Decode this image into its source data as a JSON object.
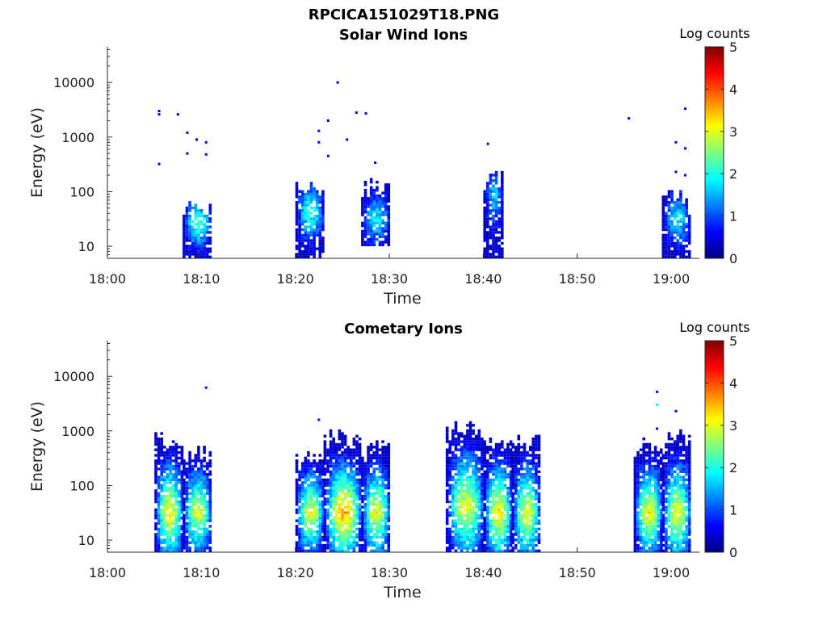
{
  "figure": {
    "title": "RPCICA151029T18.PNG"
  },
  "colors": {
    "jet": [
      "#00007f",
      "#0000ff",
      "#007fff",
      "#00ffff",
      "#7fff7f",
      "#ffff00",
      "#ff7f00",
      "#ff0000",
      "#7f0000"
    ]
  },
  "chart_data": [
    {
      "type": "heatmap",
      "title": "Solar Wind Ions",
      "xlabel": "Time",
      "ylabel": "Energy (eV)",
      "x_axis": {
        "type": "time",
        "range": [
          "18:00",
          "19:03"
        ],
        "ticks": [
          "18:00",
          "18:10",
          "18:20",
          "18:30",
          "18:40",
          "18:50",
          "19:00"
        ]
      },
      "y_axis": {
        "scale": "log",
        "range": [
          6,
          45000
        ],
        "ticks": [
          10,
          100,
          1000,
          10000
        ],
        "tick_labels": [
          "10",
          "100",
          "1000",
          "10000"
        ]
      },
      "colorbar": {
        "label": "Log counts",
        "range": [
          0,
          5
        ],
        "ticks": [
          0,
          1,
          2,
          3,
          4,
          5
        ],
        "tick_labels": [
          "0",
          "1",
          "2",
          "3",
          "4",
          "5"
        ],
        "colormap": "jet"
      },
      "bursts": [
        {
          "start": "18:08",
          "end": "18:10",
          "emin": 6,
          "emax": 90,
          "peak_e": 25,
          "peak_level": 2.3
        },
        {
          "start": "18:20",
          "end": "18:22",
          "emin": 6,
          "emax": 150,
          "peak_e": 40,
          "peak_level": 2.2
        },
        {
          "start": "18:27",
          "end": "18:29",
          "emin": 10,
          "emax": 180,
          "peak_e": 30,
          "peak_level": 1.9
        },
        {
          "start": "18:40",
          "end": "18:41",
          "emin": 6,
          "emax": 280,
          "peak_e": 80,
          "peak_level": 1.6
        },
        {
          "start": "18:59",
          "end": "19:01",
          "emin": 6,
          "emax": 110,
          "peak_e": 30,
          "peak_level": 1.9
        }
      ],
      "isolated_counts": [
        {
          "time": "18:05",
          "energy": 2600,
          "level": 0.5
        },
        {
          "time": "18:05",
          "energy": 320,
          "level": 0.5
        },
        {
          "time": "18:05",
          "energy": 3000,
          "level": 0.5
        },
        {
          "time": "18:07",
          "energy": 2600,
          "level": 0.5
        },
        {
          "time": "18:08",
          "energy": 1200,
          "level": 0.5
        },
        {
          "time": "18:08",
          "energy": 500,
          "level": 0.5
        },
        {
          "time": "18:09",
          "energy": 900,
          "level": 0.5
        },
        {
          "time": "18:10",
          "energy": 800,
          "level": 0.5
        },
        {
          "time": "18:10",
          "energy": 480,
          "level": 0.5
        },
        {
          "time": "18:22",
          "energy": 1300,
          "level": 0.5
        },
        {
          "time": "18:22",
          "energy": 800,
          "level": 0.5
        },
        {
          "time": "18:23",
          "energy": 450,
          "level": 0.5
        },
        {
          "time": "18:23",
          "energy": 2000,
          "level": 0.5
        },
        {
          "time": "18:24",
          "energy": 10000,
          "level": 0.5
        },
        {
          "time": "18:25",
          "energy": 900,
          "level": 0.5
        },
        {
          "time": "18:26",
          "energy": 2800,
          "level": 0.5
        },
        {
          "time": "18:27",
          "energy": 2700,
          "level": 0.5
        },
        {
          "time": "18:28",
          "energy": 340,
          "level": 0.5
        },
        {
          "time": "18:40",
          "energy": 750,
          "level": 0.5
        },
        {
          "time": "18:55",
          "energy": 2200,
          "level": 0.5
        },
        {
          "time": "19:00",
          "energy": 230,
          "level": 0.5
        },
        {
          "time": "19:00",
          "energy": 800,
          "level": 0.5
        },
        {
          "time": "19:01",
          "energy": 3300,
          "level": 0.5
        },
        {
          "time": "19:01",
          "energy": 620,
          "level": 0.5
        },
        {
          "time": "19:01",
          "energy": 200,
          "level": 0.5
        }
      ]
    },
    {
      "type": "heatmap",
      "title": "Cometary Ions",
      "xlabel": "Time",
      "ylabel": "Energy (eV)",
      "x_axis": {
        "type": "time",
        "range": [
          "18:00",
          "19:03"
        ],
        "ticks": [
          "18:00",
          "18:10",
          "18:20",
          "18:30",
          "18:40",
          "18:50",
          "19:00"
        ]
      },
      "y_axis": {
        "scale": "log",
        "range": [
          6,
          45000
        ],
        "ticks": [
          10,
          100,
          1000,
          10000
        ],
        "tick_labels": [
          "10",
          "100",
          "1000",
          "10000"
        ]
      },
      "colorbar": {
        "label": "Log counts",
        "range": [
          0,
          5
        ],
        "ticks": [
          0,
          1,
          2,
          3,
          4,
          5
        ],
        "tick_labels": [
          "0",
          "1",
          "2",
          "3",
          "4",
          "5"
        ],
        "colormap": "jet"
      },
      "bursts": [
        {
          "start": "18:05",
          "end": "18:07",
          "emin": 6,
          "emax": 950,
          "peak_e": 30,
          "peak_level": 3.2
        },
        {
          "start": "18:08",
          "end": "18:10",
          "emin": 6,
          "emax": 550,
          "peak_e": 30,
          "peak_level": 3.0
        },
        {
          "start": "18:20",
          "end": "18:22",
          "emin": 6,
          "emax": 450,
          "peak_e": 30,
          "peak_level": 3.1
        },
        {
          "start": "18:23",
          "end": "18:26",
          "emin": 6,
          "emax": 1000,
          "peak_e": 30,
          "peak_level": 3.6
        },
        {
          "start": "18:27",
          "end": "18:29",
          "emin": 6,
          "emax": 700,
          "peak_e": 30,
          "peak_level": 3.1
        },
        {
          "start": "18:36",
          "end": "18:39",
          "emin": 6,
          "emax": 1500,
          "peak_e": 40,
          "peak_level": 3.1
        },
        {
          "start": "18:40",
          "end": "18:42",
          "emin": 6,
          "emax": 1000,
          "peak_e": 30,
          "peak_level": 3.3
        },
        {
          "start": "18:43",
          "end": "18:45",
          "emin": 6,
          "emax": 850,
          "peak_e": 30,
          "peak_level": 3.1
        },
        {
          "start": "18:56",
          "end": "18:58",
          "emin": 6,
          "emax": 700,
          "peak_e": 30,
          "peak_level": 3.2
        },
        {
          "start": "18:59",
          "end": "19:01",
          "emin": 6,
          "emax": 1100,
          "peak_e": 30,
          "peak_level": 3.1
        }
      ],
      "isolated_counts": [
        {
          "time": "18:10",
          "energy": 6200,
          "level": 0.6
        },
        {
          "time": "18:22",
          "energy": 1600,
          "level": 0.6
        },
        {
          "time": "18:58",
          "energy": 3000,
          "level": 1.8
        },
        {
          "time": "18:58",
          "energy": 5200,
          "level": 0.6
        },
        {
          "time": "19:00",
          "energy": 2300,
          "level": 0.6
        },
        {
          "time": "18:58",
          "energy": 1100,
          "level": 0.6
        }
      ]
    }
  ]
}
